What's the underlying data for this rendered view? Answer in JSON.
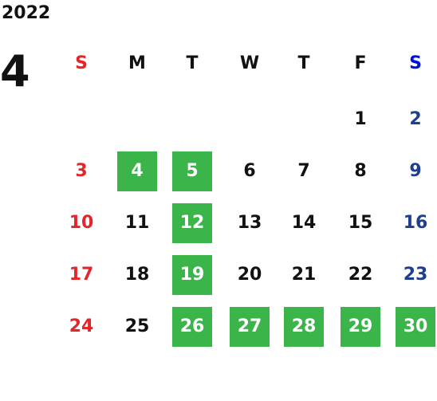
{
  "year": "2022",
  "month": "4",
  "weekdays": [
    "S",
    "M",
    "T",
    "W",
    "T",
    "F",
    "S"
  ],
  "weeks": [
    [
      null,
      null,
      null,
      null,
      null,
      {
        "day": "1",
        "highlight": false
      },
      {
        "day": "2",
        "highlight": false
      }
    ],
    [
      {
        "day": "3",
        "highlight": false
      },
      {
        "day": "4",
        "highlight": true
      },
      {
        "day": "5",
        "highlight": true
      },
      {
        "day": "6",
        "highlight": false
      },
      {
        "day": "7",
        "highlight": false
      },
      {
        "day": "8",
        "highlight": false
      },
      {
        "day": "9",
        "highlight": false
      }
    ],
    [
      {
        "day": "10",
        "highlight": false
      },
      {
        "day": "11",
        "highlight": false
      },
      {
        "day": "12",
        "highlight": true
      },
      {
        "day": "13",
        "highlight": false
      },
      {
        "day": "14",
        "highlight": false
      },
      {
        "day": "15",
        "highlight": false
      },
      {
        "day": "16",
        "highlight": false
      }
    ],
    [
      {
        "day": "17",
        "highlight": false
      },
      {
        "day": "18",
        "highlight": false
      },
      {
        "day": "19",
        "highlight": true
      },
      {
        "day": "20",
        "highlight": false
      },
      {
        "day": "21",
        "highlight": false
      },
      {
        "day": "22",
        "highlight": false
      },
      {
        "day": "23",
        "highlight": false
      }
    ],
    [
      {
        "day": "24",
        "highlight": false
      },
      {
        "day": "25",
        "highlight": false
      },
      {
        "day": "26",
        "highlight": true
      },
      {
        "day": "27",
        "highlight": true
      },
      {
        "day": "28",
        "highlight": true
      },
      {
        "day": "29",
        "highlight": true
      },
      {
        "day": "30",
        "highlight": true
      }
    ]
  ]
}
